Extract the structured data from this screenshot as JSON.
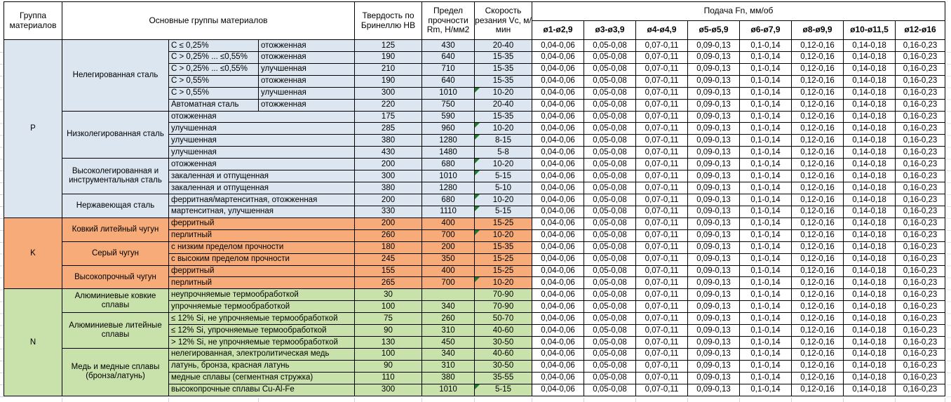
{
  "colors": {
    "group_p_fill": "#dce6f1",
    "group_k_fill": "#f6ab79",
    "group_n_fill": "#c9e2ab",
    "comment_marker": "#1e7a2e",
    "border": "#000000"
  },
  "table": {
    "headers": {
      "group_col": "Группа материалов",
      "materials_col": "Основные группы материалов",
      "hardness_col": "Твердость по Бринеллю HB",
      "strength_col": "Предел прочности Rm, Н/мм2",
      "speed_col": "Скорость резания Vc, м/мин",
      "feed_title": "Подача Fn, мм/об"
    },
    "feed_columns": [
      "ø1-ø2,9",
      "ø3-ø3,9",
      "ø4-ø4,9",
      "ø5-ø5,9",
      "ø6-ø7,9",
      "ø8-ø9,9",
      "ø10-ø11,5",
      "ø12-ø16"
    ],
    "feed_values": [
      "0,04-0,06",
      "0,05-0,08",
      "0,07-0,11",
      "0,09-0,13",
      "0,1-0,14",
      "0,12-0,16",
      "0,14-0,18",
      "0,16-0,23"
    ],
    "groups": [
      {
        "code": "P",
        "subgroups": [
          {
            "name": "Нелегированная сталь",
            "rows": [
              {
                "material": "C ≤ 0,25%",
                "state": "отожженная",
                "hb": "125",
                "rm": "430",
                "vc": "20-40",
                "marker": false
              },
              {
                "material": "C > 0,25% ... ≤0,55%",
                "state": "отожженная",
                "hb": "190",
                "rm": "640",
                "vc": "15-35",
                "marker": false
              },
              {
                "material": "C > 0,25% ... ≤0,55%",
                "state": "улучшенная",
                "hb": "210",
                "rm": "710",
                "vc": "15-35",
                "marker": false
              },
              {
                "material": "C > 0,55%",
                "state": "отожженная",
                "hb": "190",
                "rm": "640",
                "vc": "15-35",
                "marker": false
              },
              {
                "material": "C > 0,55%",
                "state": "улучшенная",
                "hb": "300",
                "rm": "1010",
                "vc": "10-20",
                "marker": true
              },
              {
                "material": "Автоматная сталь",
                "state": "отожженная",
                "hb": "220",
                "rm": "750",
                "vc": "20-40",
                "marker": false
              }
            ]
          },
          {
            "name": "Низколегированная сталь",
            "rows": [
              {
                "material": "отожженная",
                "state": null,
                "hb": "175",
                "rm": "590",
                "vc": "15-35",
                "marker": false
              },
              {
                "material": "улучшенная",
                "state": null,
                "hb": "285",
                "rm": "960",
                "vc": "10-20",
                "marker": true
              },
              {
                "material": "улучшенная",
                "state": null,
                "hb": "380",
                "rm": "1280",
                "vc": "8-15",
                "marker": true
              },
              {
                "material": "улучшенная",
                "state": null,
                "hb": "430",
                "rm": "1480",
                "vc": "5-8",
                "marker": false
              }
            ]
          },
          {
            "name": "Высоколегированная и инструментальная сталь",
            "rows": [
              {
                "material": "отожженная",
                "state": null,
                "hb": "200",
                "rm": "680",
                "vc": "10-20",
                "marker": true
              },
              {
                "material": "закаленная и отпущенная",
                "state": null,
                "hb": "300",
                "rm": "1010",
                "vc": "5-15",
                "marker": true
              },
              {
                "material": "закаленная и отпущенная",
                "state": null,
                "hb": "380",
                "rm": "1280",
                "vc": "5-10",
                "marker": false
              }
            ]
          },
          {
            "name": "Нержавеющая сталь",
            "rows": [
              {
                "material": "ферритная/мартенситная, отожженная",
                "state": null,
                "hb": "200",
                "rm": "680",
                "vc": "10-20",
                "marker": true
              },
              {
                "material": "мартенситная, улучшенная",
                "state": null,
                "hb": "330",
                "rm": "1110",
                "vc": "5-15",
                "marker": true
              }
            ]
          }
        ]
      },
      {
        "code": "K",
        "subgroups": [
          {
            "name": "Ковкий литейный чугун",
            "rows": [
              {
                "material": "ферритный",
                "state": null,
                "hb": "200",
                "rm": "400",
                "vc": "15-25",
                "marker": false
              },
              {
                "material": "перлитный",
                "state": null,
                "hb": "260",
                "rm": "700",
                "vc": "10-20",
                "marker": true
              }
            ]
          },
          {
            "name": "Серый чугун",
            "rows": [
              {
                "material": "с низким пределом прочности",
                "state": null,
                "hb": "180",
                "rm": "200",
                "vc": "15-35",
                "marker": false
              },
              {
                "material": "с высоким пределом прочности",
                "state": null,
                "hb": "245",
                "rm": "350",
                "vc": "15-25",
                "marker": false
              }
            ]
          },
          {
            "name": "Высокопрочный чугун",
            "rows": [
              {
                "material": "ферритный",
                "state": null,
                "hb": "155",
                "rm": "400",
                "vc": "15-25",
                "marker": false
              },
              {
                "material": "перлитный",
                "state": null,
                "hb": "265",
                "rm": "700",
                "vc": "10-20",
                "marker": true
              }
            ]
          }
        ]
      },
      {
        "code": "N",
        "subgroups": [
          {
            "name": "Алюминиевые ковкие сплавы",
            "rows": [
              {
                "material": "неупрочняемые термообработкой",
                "state": null,
                "hb": "30",
                "rm": "",
                "vc": "70-90",
                "marker": false
              },
              {
                "material": "упрочняемые термообработкой",
                "state": null,
                "hb": "100",
                "rm": "340",
                "vc": "70-90",
                "marker": false
              }
            ]
          },
          {
            "name": "Алюминиевые литейные сплавы",
            "rows": [
              {
                "material": "≤ 12% Si, не упрочняемые термообработкой",
                "state": null,
                "hb": "75",
                "rm": "260",
                "vc": "50-70",
                "marker": false
              },
              {
                "material": "≤ 12% Si, упрочняемые термообработкой",
                "state": null,
                "hb": "90",
                "rm": "310",
                "vc": "40-60",
                "marker": false
              },
              {
                "material": "> 12% Si, не упрочняемые термообработкой",
                "state": null,
                "hb": "130",
                "rm": "450",
                "vc": "30-50",
                "marker": false
              }
            ]
          },
          {
            "name": "Медь и медные сплавы (бронза/латунь)",
            "rows": [
              {
                "material": "нелегированная, электролитическая медь",
                "state": null,
                "hb": "100",
                "rm": "340",
                "vc": "40-60",
                "marker": false
              },
              {
                "material": "латунь, бронза, красная латунь",
                "state": null,
                "hb": "90",
                "rm": "310",
                "vc": "30-50",
                "marker": false
              },
              {
                "material": "медные сплавы (сегментная стружка)",
                "state": null,
                "hb": "110",
                "rm": "380",
                "vc": "35-55",
                "marker": false
              },
              {
                "material": "высокопрочные сплавы Cu-Al-Fe",
                "state": null,
                "hb": "300",
                "rm": "1010",
                "vc": "5-15",
                "marker": true
              }
            ]
          }
        ]
      }
    ]
  }
}
